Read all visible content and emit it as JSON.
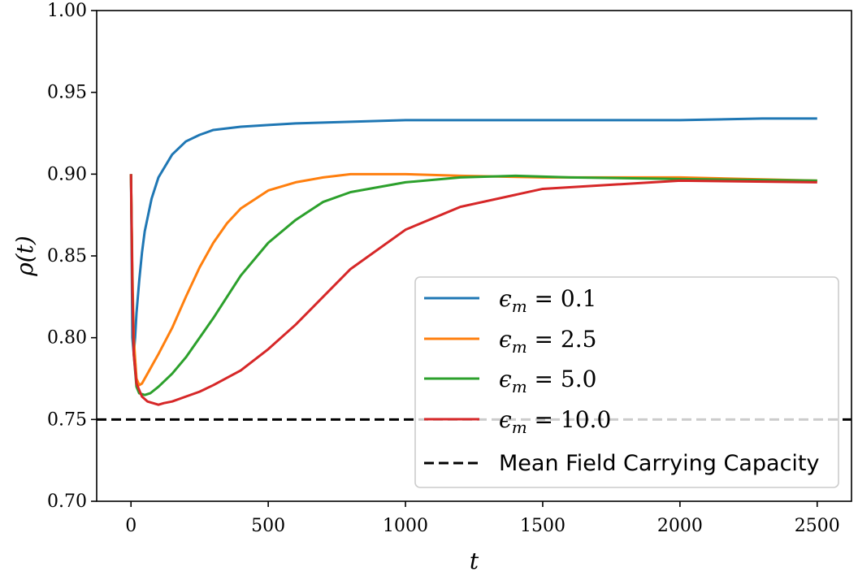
{
  "chart_data": {
    "type": "line",
    "xlabel": "t",
    "ylabel": "ρ(t)",
    "xlim": [
      -125,
      2625
    ],
    "ylim": [
      0.7,
      1.0
    ],
    "x_ticks": [
      0,
      500,
      1000,
      1500,
      2000,
      2500
    ],
    "y_ticks": [
      0.7,
      0.75,
      0.8,
      0.85,
      0.9,
      0.95,
      1.0
    ],
    "x_tick_labels": [
      "0",
      "500",
      "1000",
      "1500",
      "2000",
      "2500"
    ],
    "y_tick_labels": [
      "0.70",
      "0.75",
      "0.80",
      "0.85",
      "0.90",
      "0.95",
      "1.00"
    ],
    "grid": false,
    "legend_position": "lower-right",
    "series": [
      {
        "name": "ϵm = 0.1",
        "name_base": "ϵ",
        "name_sub": "m",
        "name_rest": " = 0.1",
        "color": "#1f77b4",
        "x": [
          0,
          5,
          10,
          15,
          20,
          30,
          40,
          50,
          75,
          100,
          150,
          200,
          250,
          300,
          400,
          500,
          600,
          800,
          1000,
          1500,
          2000,
          2300,
          2500
        ],
        "y": [
          0.9,
          0.8,
          0.79,
          0.8,
          0.815,
          0.835,
          0.852,
          0.865,
          0.885,
          0.898,
          0.912,
          0.92,
          0.924,
          0.927,
          0.929,
          0.93,
          0.931,
          0.932,
          0.933,
          0.933,
          0.933,
          0.934,
          0.934
        ]
      },
      {
        "name": "ϵm = 2.5",
        "name_base": "ϵ",
        "name_sub": "m",
        "name_rest": " = 2.5",
        "color": "#ff7f0e",
        "x": [
          0,
          5,
          10,
          20,
          30,
          40,
          50,
          60,
          80,
          100,
          150,
          200,
          250,
          300,
          350,
          400,
          500,
          600,
          700,
          800,
          1000,
          1200,
          1500,
          2000,
          2500
        ],
        "y": [
          0.9,
          0.84,
          0.8,
          0.775,
          0.771,
          0.772,
          0.775,
          0.778,
          0.784,
          0.79,
          0.806,
          0.825,
          0.843,
          0.858,
          0.87,
          0.879,
          0.89,
          0.895,
          0.898,
          0.9,
          0.9,
          0.899,
          0.898,
          0.898,
          0.896
        ]
      },
      {
        "name": "ϵm = 5.0",
        "name_base": "ϵ",
        "name_sub": "m",
        "name_rest": " = 5.0",
        "color": "#2ca02c",
        "x": [
          0,
          5,
          10,
          20,
          30,
          50,
          70,
          100,
          150,
          200,
          300,
          400,
          500,
          600,
          700,
          800,
          1000,
          1200,
          1400,
          1600,
          2000,
          2500
        ],
        "y": [
          0.9,
          0.83,
          0.79,
          0.77,
          0.766,
          0.765,
          0.766,
          0.77,
          0.778,
          0.788,
          0.812,
          0.838,
          0.858,
          0.872,
          0.883,
          0.889,
          0.895,
          0.898,
          0.899,
          0.898,
          0.897,
          0.896
        ]
      },
      {
        "name": "ϵm = 10.0",
        "name_base": "ϵ",
        "name_sub": "m",
        "name_rest": " = 10.0",
        "color": "#d62728",
        "x": [
          0,
          5,
          10,
          20,
          40,
          60,
          80,
          100,
          120,
          150,
          200,
          250,
          300,
          400,
          500,
          600,
          700,
          800,
          1000,
          1200,
          1500,
          2000,
          2500
        ],
        "y": [
          0.9,
          0.83,
          0.79,
          0.772,
          0.764,
          0.761,
          0.76,
          0.759,
          0.76,
          0.761,
          0.764,
          0.767,
          0.771,
          0.78,
          0.793,
          0.808,
          0.825,
          0.842,
          0.866,
          0.88,
          0.891,
          0.896,
          0.895
        ]
      }
    ],
    "reference_lines": [
      {
        "name": "Mean Field Carrying Capacity",
        "y": 0.75,
        "style": "dashed",
        "color": "#000000"
      }
    ]
  }
}
